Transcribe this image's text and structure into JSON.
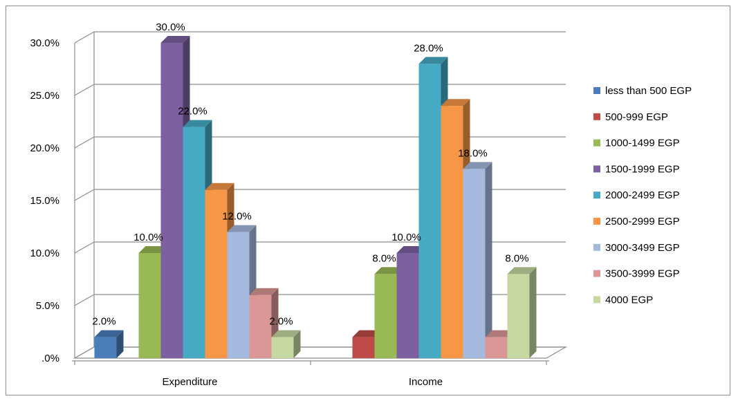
{
  "chart_data": {
    "type": "bar",
    "variant": "3d-clustered",
    "title": "",
    "xlabel": "",
    "ylabel": "",
    "ylim": [
      0,
      30
    ],
    "y_tick_labels": [
      ".0%",
      "5.0%",
      "10.0%",
      "15.0%",
      "20.0%",
      "25.0%",
      "30.0%"
    ],
    "categories": [
      "Expenditure",
      "Income"
    ],
    "grid": true,
    "legend_position": "right",
    "series": [
      {
        "name": "less than 500 EGP",
        "color": "#4a7ebb",
        "values": [
          2.0,
          0
        ],
        "labels": [
          "2.0%",
          ""
        ]
      },
      {
        "name": "500-999 EGP",
        "color": "#be4b48",
        "values": [
          0,
          2.0
        ],
        "labels": [
          "",
          ""
        ]
      },
      {
        "name": "1000-1499 EGP",
        "color": "#98b954",
        "values": [
          10.0,
          8.0
        ],
        "labels": [
          "10.0%",
          "8.0%"
        ]
      },
      {
        "name": "1500-1999 EGP",
        "color": "#7d60a0",
        "values": [
          30.0,
          10.0
        ],
        "labels": [
          "30.0%",
          "10.0%"
        ]
      },
      {
        "name": "2000-2499 EGP",
        "color": "#46aac5",
        "values": [
          22.0,
          28.0
        ],
        "labels": [
          "22.0%",
          "28.0%"
        ]
      },
      {
        "name": "2500-2999 EGP",
        "color": "#f79646",
        "values": [
          16.0,
          24.0
        ],
        "labels": [
          "",
          ""
        ]
      },
      {
        "name": "3000-3499 EGP",
        "color": "#a5b9de",
        "values": [
          12.0,
          18.0
        ],
        "labels": [
          "12.0%",
          "18.0%"
        ]
      },
      {
        "name": "3500-3999 EGP",
        "color": "#db9796",
        "values": [
          6.0,
          2.0
        ],
        "labels": [
          "",
          ""
        ]
      },
      {
        "name": "4000 EGP",
        "color": "#c5d8a0",
        "values": [
          2.0,
          8.0
        ],
        "labels": [
          "2.0%",
          "8.0%"
        ]
      }
    ]
  }
}
